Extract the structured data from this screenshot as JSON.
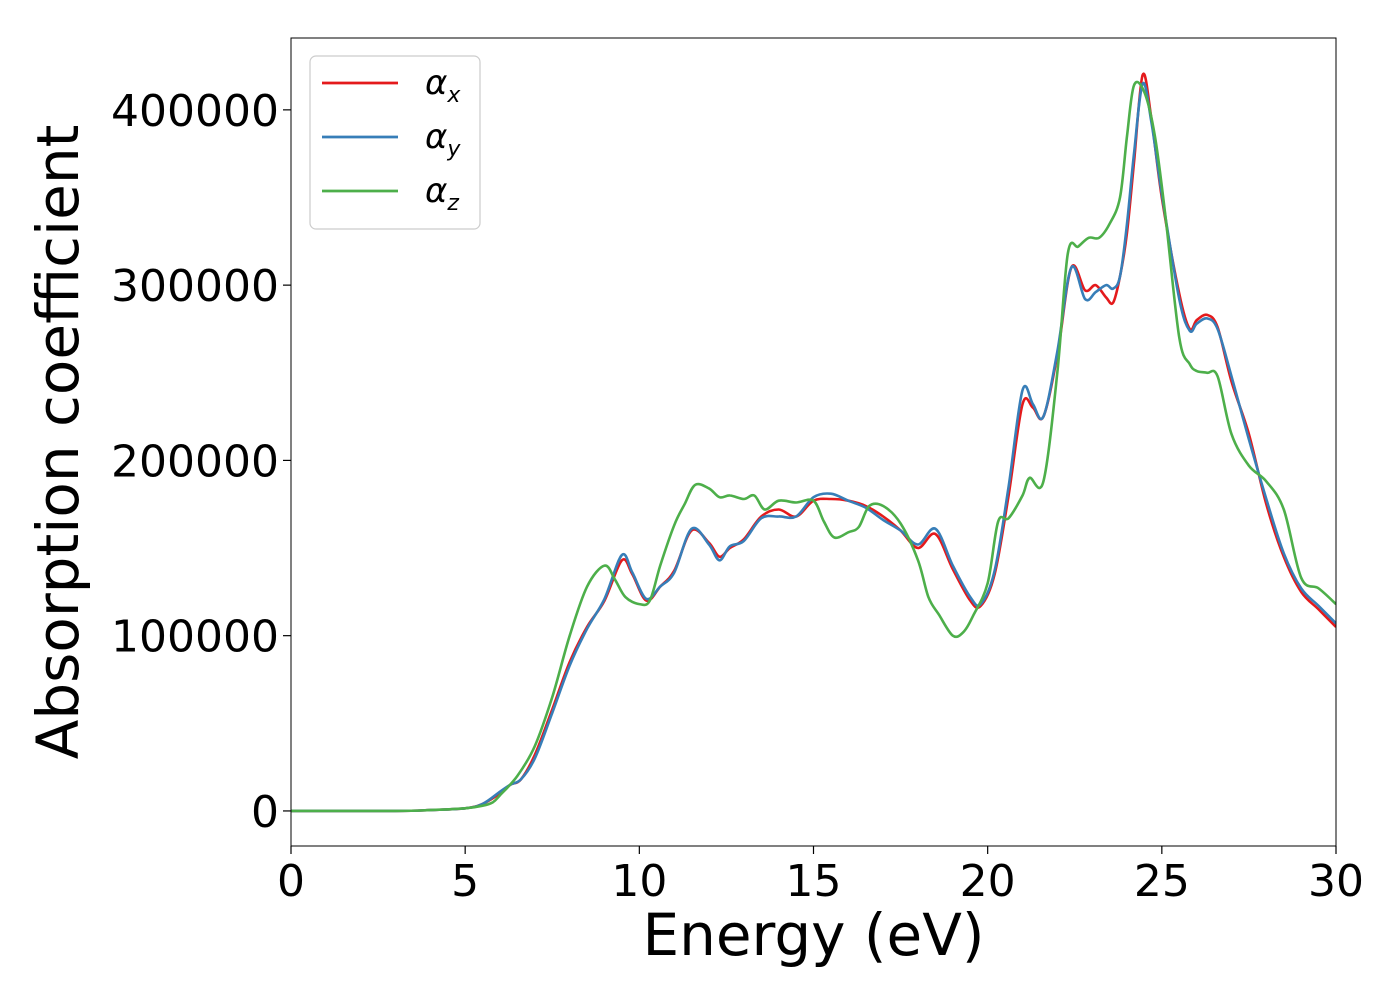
{
  "chart_data": {
    "type": "line",
    "title": "",
    "xlabel": "Energy (eV)",
    "ylabel": "Absorption coefficient",
    "xlim": [
      0,
      30
    ],
    "ylim": [
      -20000,
      441000
    ],
    "xticks": [
      0,
      5,
      10,
      15,
      20,
      25,
      30
    ],
    "yticks": [
      0,
      100000,
      200000,
      300000,
      400000
    ],
    "grid": false,
    "legend_position": "top-left",
    "series": [
      {
        "name": "α_x",
        "label_main": "α",
        "label_sub": "x",
        "color": "#e41a1c",
        "points": [
          [
            0,
            0
          ],
          [
            3,
            0
          ],
          [
            4,
            500
          ],
          [
            5,
            1500
          ],
          [
            5.5,
            4000
          ],
          [
            6,
            10000
          ],
          [
            6.3,
            15000
          ],
          [
            6.6,
            18000
          ],
          [
            7,
            32000
          ],
          [
            7.5,
            58000
          ],
          [
            8,
            85000
          ],
          [
            8.5,
            105000
          ],
          [
            9,
            120000
          ],
          [
            9.5,
            143000
          ],
          [
            9.8,
            135000
          ],
          [
            10.2,
            120000
          ],
          [
            10.6,
            128000
          ],
          [
            11,
            137000
          ],
          [
            11.5,
            160000
          ],
          [
            12,
            153000
          ],
          [
            12.3,
            145000
          ],
          [
            12.6,
            150000
          ],
          [
            13,
            155000
          ],
          [
            13.5,
            168000
          ],
          [
            14,
            172000
          ],
          [
            14.5,
            168000
          ],
          [
            15,
            177000
          ],
          [
            15.5,
            178000
          ],
          [
            16,
            177000
          ],
          [
            16.5,
            174000
          ],
          [
            17,
            168000
          ],
          [
            17.5,
            160000
          ],
          [
            18,
            150000
          ],
          [
            18.5,
            158000
          ],
          [
            19,
            138000
          ],
          [
            19.5,
            120000
          ],
          [
            19.8,
            117000
          ],
          [
            20.2,
            135000
          ],
          [
            20.6,
            180000
          ],
          [
            21,
            232000
          ],
          [
            21.3,
            230000
          ],
          [
            21.6,
            225000
          ],
          [
            22,
            260000
          ],
          [
            22.4,
            310000
          ],
          [
            22.8,
            297000
          ],
          [
            23.1,
            300000
          ],
          [
            23.4,
            293000
          ],
          [
            23.6,
            290000
          ],
          [
            23.8,
            305000
          ],
          [
            24,
            330000
          ],
          [
            24.2,
            370000
          ],
          [
            24.45,
            420000
          ],
          [
            24.7,
            395000
          ],
          [
            25,
            350000
          ],
          [
            25.5,
            295000
          ],
          [
            25.8,
            275000
          ],
          [
            26,
            280000
          ],
          [
            26.3,
            283000
          ],
          [
            26.6,
            276000
          ],
          [
            27,
            245000
          ],
          [
            27.5,
            215000
          ],
          [
            28,
            175000
          ],
          [
            28.5,
            145000
          ],
          [
            29,
            125000
          ],
          [
            29.5,
            115000
          ],
          [
            30,
            105000
          ]
        ]
      },
      {
        "name": "α_y",
        "label_main": "α",
        "label_sub": "y",
        "color": "#377eb8",
        "points": [
          [
            0,
            0
          ],
          [
            3,
            0
          ],
          [
            4,
            500
          ],
          [
            5,
            1500
          ],
          [
            5.5,
            4000
          ],
          [
            6,
            11000
          ],
          [
            6.3,
            15000
          ],
          [
            6.6,
            18000
          ],
          [
            7,
            30000
          ],
          [
            7.5,
            56000
          ],
          [
            8,
            83000
          ],
          [
            8.5,
            104000
          ],
          [
            9,
            121000
          ],
          [
            9.5,
            146000
          ],
          [
            9.8,
            136000
          ],
          [
            10.2,
            121000
          ],
          [
            10.6,
            128000
          ],
          [
            11,
            136000
          ],
          [
            11.5,
            161000
          ],
          [
            12,
            152000
          ],
          [
            12.3,
            143000
          ],
          [
            12.6,
            151000
          ],
          [
            13,
            154000
          ],
          [
            13.5,
            167000
          ],
          [
            14,
            168000
          ],
          [
            14.5,
            168000
          ],
          [
            15,
            179000
          ],
          [
            15.5,
            181000
          ],
          [
            16,
            177000
          ],
          [
            16.5,
            173000
          ],
          [
            17,
            166000
          ],
          [
            17.5,
            160000
          ],
          [
            18,
            152000
          ],
          [
            18.5,
            161000
          ],
          [
            19,
            140000
          ],
          [
            19.5,
            122000
          ],
          [
            19.8,
            118000
          ],
          [
            20.2,
            137000
          ],
          [
            20.6,
            185000
          ],
          [
            21,
            240000
          ],
          [
            21.3,
            232000
          ],
          [
            21.6,
            225000
          ],
          [
            22,
            262000
          ],
          [
            22.4,
            310000
          ],
          [
            22.8,
            292000
          ],
          [
            23.1,
            296000
          ],
          [
            23.4,
            300000
          ],
          [
            23.6,
            298000
          ],
          [
            23.8,
            305000
          ],
          [
            24,
            335000
          ],
          [
            24.2,
            375000
          ],
          [
            24.45,
            415000
          ],
          [
            24.7,
            393000
          ],
          [
            25,
            352000
          ],
          [
            25.5,
            292000
          ],
          [
            25.8,
            274000
          ],
          [
            26,
            278000
          ],
          [
            26.3,
            281000
          ],
          [
            26.6,
            275000
          ],
          [
            27,
            248000
          ],
          [
            27.5,
            212000
          ],
          [
            28,
            178000
          ],
          [
            28.5,
            147000
          ],
          [
            29,
            127000
          ],
          [
            29.5,
            117000
          ],
          [
            30,
            107000
          ]
        ]
      },
      {
        "name": "α_z",
        "label_main": "α",
        "label_sub": "z",
        "color": "#4daf4a",
        "points": [
          [
            0,
            0
          ],
          [
            3,
            0
          ],
          [
            4,
            500
          ],
          [
            5,
            1500
          ],
          [
            5.5,
            3000
          ],
          [
            5.8,
            5000
          ],
          [
            6,
            9000
          ],
          [
            6.5,
            20000
          ],
          [
            7,
            37000
          ],
          [
            7.5,
            65000
          ],
          [
            8,
            100000
          ],
          [
            8.5,
            128000
          ],
          [
            9,
            140000
          ],
          [
            9.3,
            132000
          ],
          [
            9.6,
            122000
          ],
          [
            10,
            118000
          ],
          [
            10.3,
            120000
          ],
          [
            10.6,
            140000
          ],
          [
            11,
            163000
          ],
          [
            11.3,
            175000
          ],
          [
            11.6,
            186000
          ],
          [
            12,
            184000
          ],
          [
            12.3,
            179000
          ],
          [
            12.6,
            180000
          ],
          [
            13,
            178000
          ],
          [
            13.3,
            180000
          ],
          [
            13.6,
            172000
          ],
          [
            14,
            177000
          ],
          [
            14.5,
            176000
          ],
          [
            15,
            177000
          ],
          [
            15.3,
            165000
          ],
          [
            15.6,
            156000
          ],
          [
            16,
            159000
          ],
          [
            16.3,
            162000
          ],
          [
            16.6,
            174000
          ],
          [
            17,
            174000
          ],
          [
            17.5,
            164000
          ],
          [
            18,
            143000
          ],
          [
            18.3,
            122000
          ],
          [
            18.6,
            112000
          ],
          [
            19,
            100000
          ],
          [
            19.3,
            102000
          ],
          [
            19.6,
            112000
          ],
          [
            20,
            130000
          ],
          [
            20.3,
            165000
          ],
          [
            20.6,
            167000
          ],
          [
            21,
            180000
          ],
          [
            21.2,
            190000
          ],
          [
            21.6,
            188000
          ],
          [
            22,
            250000
          ],
          [
            22.3,
            318000
          ],
          [
            22.6,
            322000
          ],
          [
            22.9,
            327000
          ],
          [
            23.2,
            327000
          ],
          [
            23.5,
            335000
          ],
          [
            23.8,
            350000
          ],
          [
            24,
            385000
          ],
          [
            24.2,
            414000
          ],
          [
            24.5,
            410000
          ],
          [
            24.8,
            385000
          ],
          [
            25.1,
            340000
          ],
          [
            25.5,
            270000
          ],
          [
            25.8,
            255000
          ],
          [
            26,
            251000
          ],
          [
            26.3,
            250000
          ],
          [
            26.6,
            248000
          ],
          [
            27,
            215000
          ],
          [
            27.5,
            197000
          ],
          [
            28,
            188000
          ],
          [
            28.5,
            172000
          ],
          [
            29,
            133000
          ],
          [
            29.5,
            127000
          ],
          [
            30,
            118000
          ]
        ]
      }
    ]
  }
}
